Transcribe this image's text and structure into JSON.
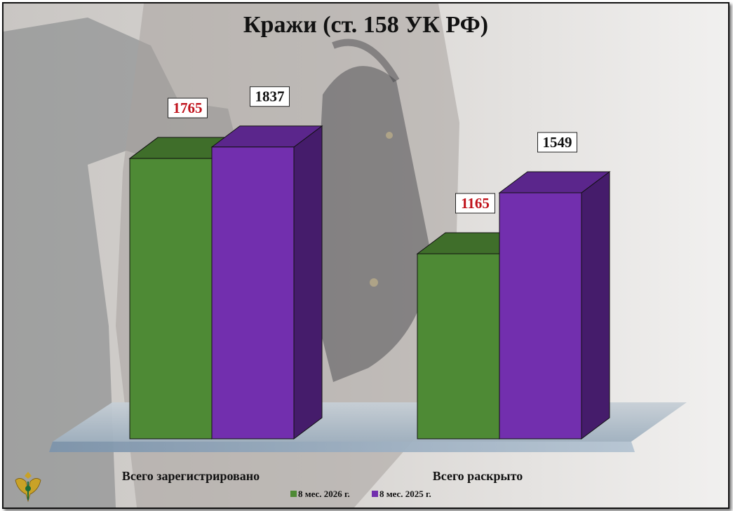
{
  "title": "Кражи (ст. 158 УК РФ)",
  "colors": {
    "series_2026": "#4e8a35",
    "series_2025": "#722fae",
    "label_red": "#c0121b",
    "label_black": "#111111"
  },
  "chart_data": {
    "type": "bar",
    "title": "Кражи (ст. 158 УК РФ)",
    "categories": [
      "Всего зарегистрировано",
      "Всего раскрыто"
    ],
    "series": [
      {
        "name": "8 мес. 2026 г.",
        "values": [
          1765,
          1165
        ]
      },
      {
        "name": "8 мес. 2025 г.",
        "values": [
          1837,
          1549
        ]
      }
    ],
    "data_labels": [
      [
        "1765",
        "1165"
      ],
      [
        "1837",
        "1549"
      ]
    ],
    "xlabel": "",
    "ylabel": "",
    "ylim": [
      0,
      2000
    ],
    "grid": false,
    "legend_position": "bottom",
    "style": "3d-column"
  }
}
